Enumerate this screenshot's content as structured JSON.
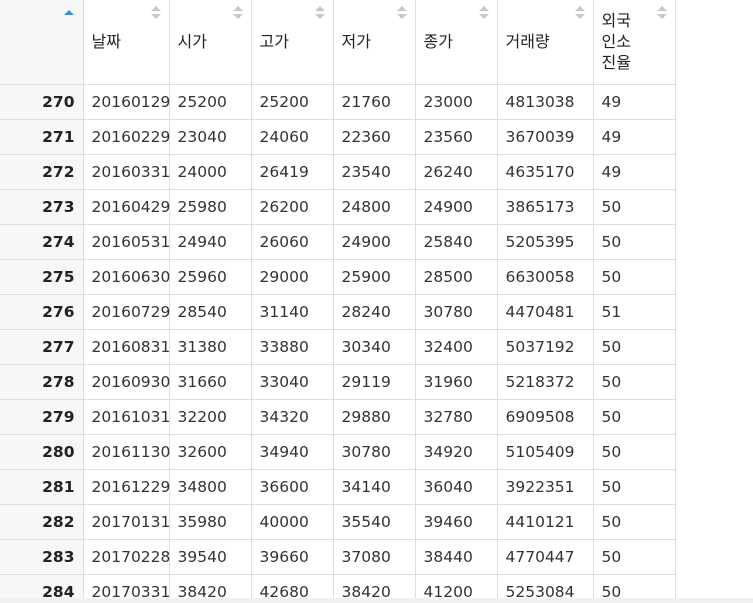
{
  "table": {
    "columns": [
      "날짜",
      "시가",
      "고가",
      "저가",
      "종가",
      "거래량",
      "외국인소진율"
    ],
    "header_last_lines": [
      "외국",
      "인소",
      "진율"
    ],
    "sort": {
      "column": "index",
      "direction": "ascending"
    },
    "rows": [
      {
        "index": "270",
        "cells": [
          "20160129",
          "25200",
          "25200",
          "21760",
          "23000",
          "4813038",
          "49"
        ]
      },
      {
        "index": "271",
        "cells": [
          "20160229",
          "23040",
          "24060",
          "22360",
          "23560",
          "3670039",
          "49"
        ]
      },
      {
        "index": "272",
        "cells": [
          "20160331",
          "24000",
          "26419",
          "23540",
          "26240",
          "4635170",
          "49"
        ]
      },
      {
        "index": "273",
        "cells": [
          "20160429",
          "25980",
          "26200",
          "24800",
          "24900",
          "3865173",
          "50"
        ]
      },
      {
        "index": "274",
        "cells": [
          "20160531",
          "24940",
          "26060",
          "24900",
          "25840",
          "5205395",
          "50"
        ]
      },
      {
        "index": "275",
        "cells": [
          "20160630",
          "25960",
          "29000",
          "25900",
          "28500",
          "6630058",
          "50"
        ]
      },
      {
        "index": "276",
        "cells": [
          "20160729",
          "28540",
          "31140",
          "28240",
          "30780",
          "4470481",
          "51"
        ]
      },
      {
        "index": "277",
        "cells": [
          "20160831",
          "31380",
          "33880",
          "30340",
          "32400",
          "5037192",
          "50"
        ]
      },
      {
        "index": "278",
        "cells": [
          "20160930",
          "31660",
          "33040",
          "29119",
          "31960",
          "5218372",
          "50"
        ]
      },
      {
        "index": "279",
        "cells": [
          "20161031",
          "32200",
          "34320",
          "29880",
          "32780",
          "6909508",
          "50"
        ]
      },
      {
        "index": "280",
        "cells": [
          "20161130",
          "32600",
          "34940",
          "30780",
          "34920",
          "5105409",
          "50"
        ]
      },
      {
        "index": "281",
        "cells": [
          "20161229",
          "34800",
          "36600",
          "34140",
          "36040",
          "3922351",
          "50"
        ]
      },
      {
        "index": "282",
        "cells": [
          "20170131",
          "35980",
          "40000",
          "35540",
          "39460",
          "4410121",
          "50"
        ]
      },
      {
        "index": "283",
        "cells": [
          "20170228",
          "39540",
          "39660",
          "37080",
          "38440",
          "4770447",
          "50"
        ]
      },
      {
        "index": "284",
        "cells": [
          "20170331",
          "38420",
          "42680",
          "38420",
          "41200",
          "5253084",
          "50"
        ]
      }
    ]
  },
  "colors": {
    "sort_active": "#3a8ee6",
    "sort_inactive": "#c8c8c8",
    "index_background": "#f5f7f8",
    "grid_line": "#dddddd"
  },
  "icons": {
    "sort_active": "sort-ascending-icon",
    "sort_inactive": "sort-both-icon"
  }
}
